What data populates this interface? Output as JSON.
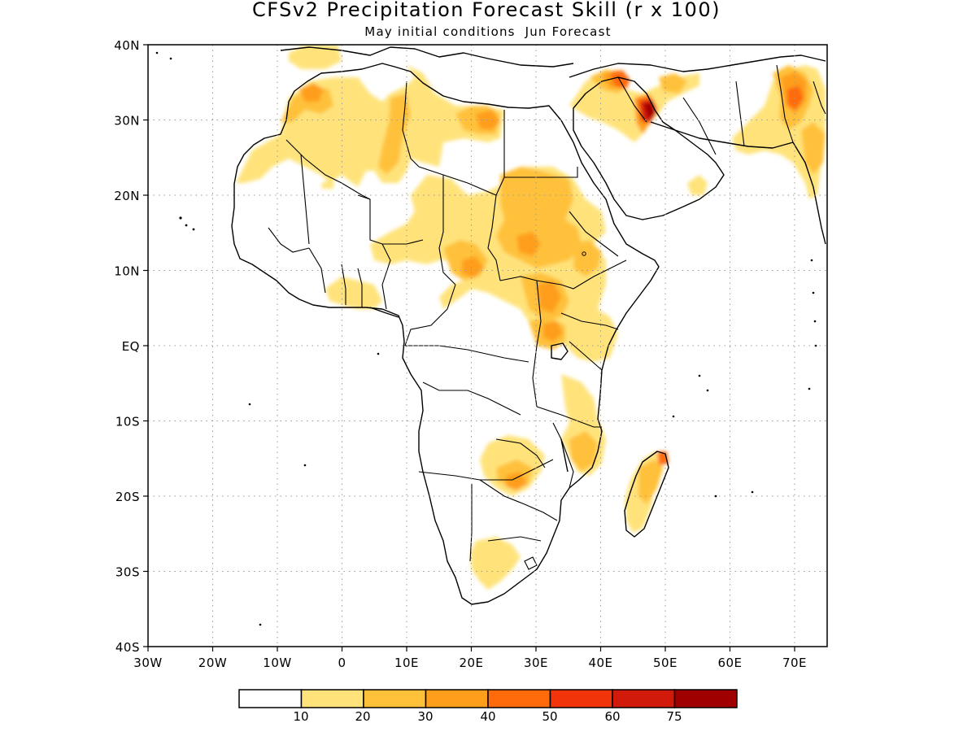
{
  "title": "CFSv2 Precipitation Forecast Skill (r x 100)",
  "subtitle": "May initial conditions  Jun Forecast",
  "axes": {
    "lat_labels": [
      "40N",
      "30N",
      "20N",
      "10N",
      "EQ",
      "10S",
      "20S",
      "30S",
      "40S"
    ],
    "lon_labels": [
      "30W",
      "20W",
      "10W",
      "0",
      "10E",
      "20E",
      "30E",
      "40E",
      "50E",
      "60E",
      "70E"
    ]
  },
  "legend": {
    "tick_labels": [
      "10",
      "20",
      "30",
      "40",
      "50",
      "60",
      "75"
    ],
    "colors": [
      "#ffffff",
      "#ffe37a",
      "#ffc13a",
      "#ff9e1a",
      "#ff6a0a",
      "#f2340a",
      "#d11a0a",
      "#a00000"
    ]
  },
  "map_style": {
    "coastline_color": "#000000",
    "grid": "dotted",
    "background": "#ffffff"
  }
}
